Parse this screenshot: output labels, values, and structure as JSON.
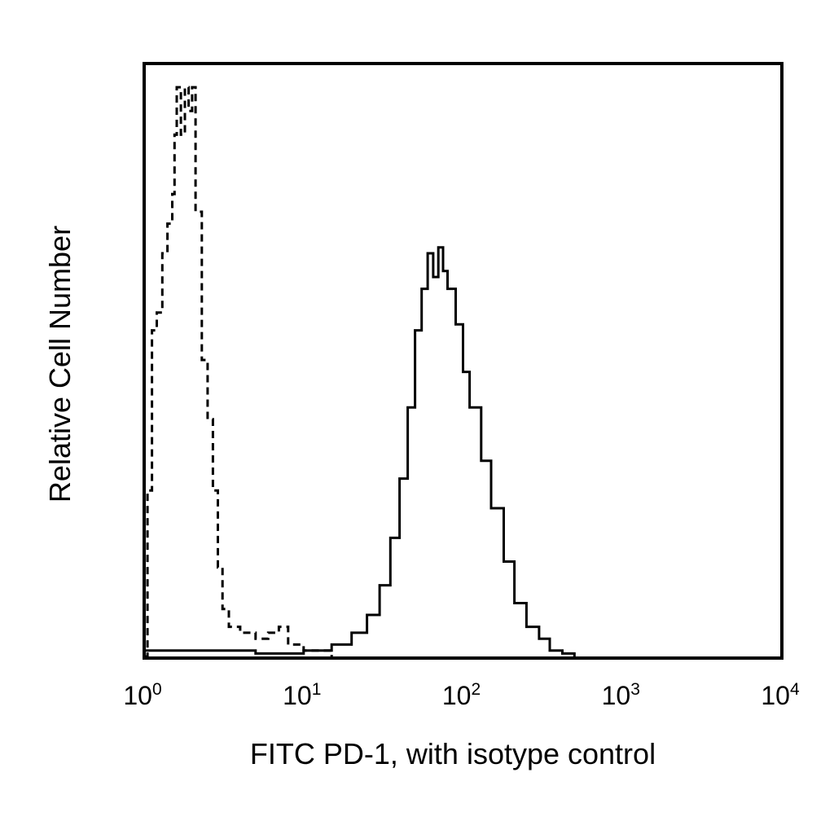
{
  "chart_data": {
    "type": "histogram",
    "x_scale": "log10",
    "xlim": [
      1,
      10000
    ],
    "ylim": [
      0,
      100
    ],
    "xlabel": "FITC PD-1, with isotype control",
    "ylabel": "Relative Cell Number",
    "x_ticks": [
      {
        "value": 1,
        "base": "10",
        "exponent": "0"
      },
      {
        "value": 10,
        "base": "10",
        "exponent": "1"
      },
      {
        "value": 100,
        "base": "10",
        "exponent": "2"
      },
      {
        "value": 1000,
        "base": "10",
        "exponent": "3"
      },
      {
        "value": 10000,
        "base": "10",
        "exponent": "4"
      }
    ],
    "grid": false,
    "legend": "none",
    "series": [
      {
        "style": "dashed",
        "color": "#000000",
        "points": [
          [
            1.0,
            0
          ],
          [
            1.05,
            28
          ],
          [
            1.12,
            55
          ],
          [
            1.2,
            58
          ],
          [
            1.3,
            68
          ],
          [
            1.4,
            73
          ],
          [
            1.5,
            78
          ],
          [
            1.55,
            88
          ],
          [
            1.6,
            96
          ],
          [
            1.7,
            88
          ],
          [
            1.8,
            96
          ],
          [
            1.9,
            92
          ],
          [
            2.0,
            96
          ],
          [
            2.1,
            75
          ],
          [
            2.3,
            50
          ],
          [
            2.5,
            40
          ],
          [
            2.7,
            28
          ],
          [
            2.9,
            15
          ],
          [
            3.1,
            8
          ],
          [
            3.4,
            5
          ],
          [
            4.0,
            4
          ],
          [
            5.0,
            3
          ],
          [
            6.0,
            4
          ],
          [
            7.0,
            5
          ],
          [
            8.0,
            2
          ],
          [
            10.0,
            1
          ],
          [
            12.0,
            1
          ],
          [
            15.0,
            0
          ]
        ]
      },
      {
        "style": "solid",
        "color": "#000000",
        "points": [
          [
            1.0,
            1
          ],
          [
            2.0,
            1
          ],
          [
            5.0,
            0.5
          ],
          [
            10.0,
            1
          ],
          [
            15.0,
            2
          ],
          [
            20.0,
            4
          ],
          [
            25.0,
            7
          ],
          [
            30.0,
            12
          ],
          [
            35.0,
            20
          ],
          [
            40.0,
            30
          ],
          [
            45.0,
            42
          ],
          [
            50.0,
            55
          ],
          [
            55.0,
            62
          ],
          [
            60.0,
            68
          ],
          [
            65.0,
            64
          ],
          [
            70.0,
            69
          ],
          [
            75.0,
            65
          ],
          [
            80.0,
            62
          ],
          [
            90.0,
            56
          ],
          [
            100.0,
            48
          ],
          [
            110.0,
            42
          ],
          [
            130.0,
            33
          ],
          [
            150.0,
            25
          ],
          [
            180.0,
            16
          ],
          [
            210.0,
            9
          ],
          [
            250.0,
            5
          ],
          [
            300.0,
            3
          ],
          [
            350.0,
            1
          ],
          [
            420.0,
            0.5
          ],
          [
            500.0,
            0
          ]
        ]
      }
    ]
  }
}
